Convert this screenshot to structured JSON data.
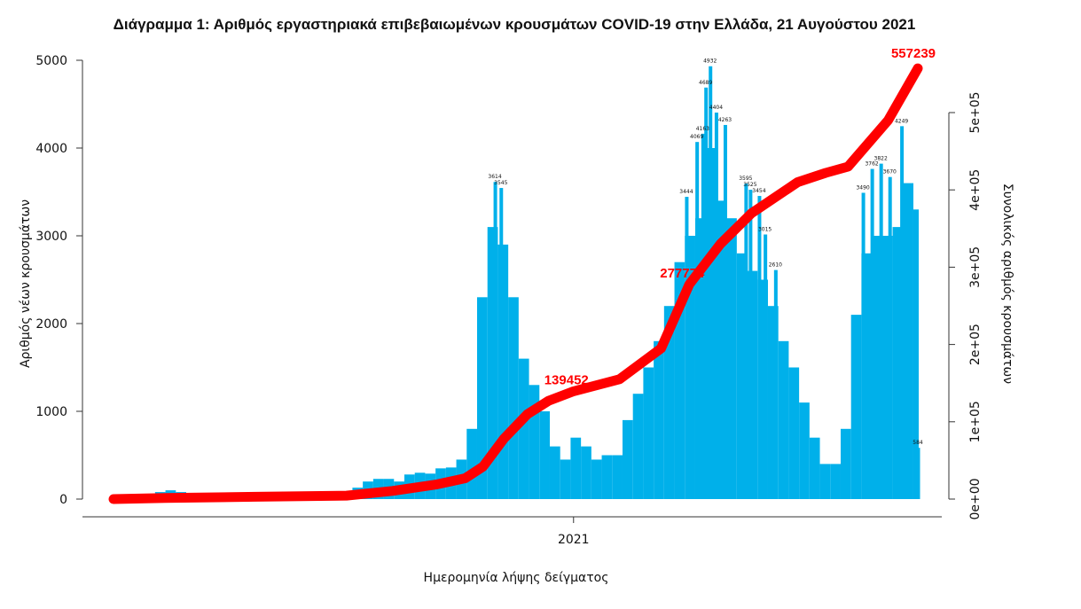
{
  "chart_data": {
    "type": "bar+line",
    "title": "Διάγραμμα 1: Αριθμός εργαστηριακά επιβεβαιωμένων κρουσμάτων COVID-19 στην Ελλάδα, 21 Αυγούστου 2021",
    "xlabel": "Ημερομηνία λήψης δείγματος",
    "ylabel_left": "Αριθμός νέων κρουσμάτων",
    "ylabel_right": "Συνολικός αριθμός κρουσμάτων",
    "x_tick_labels": [
      {
        "date": "2021-01-01",
        "label": "2021"
      }
    ],
    "left_ticks": [
      "0",
      "1000",
      "2000",
      "3000",
      "4000",
      "5000"
    ],
    "right_ticks": [
      "0e+00",
      "1e+05",
      "2e+05",
      "3e+05",
      "4e+05",
      "5e+05"
    ],
    "xlim": [
      "2020-02-26",
      "2021-08-21"
    ],
    "ylim_left": [
      0,
      5000
    ],
    "ylim_right": [
      0,
      500000
    ],
    "grid": false,
    "colors": {
      "bars": "#00b0ea",
      "cumulative": "#ff0000"
    },
    "daily_series": {
      "name": "",
      "x": [
        "2020-02-26",
        "2020-03-04",
        "2020-03-11",
        "2020-03-18",
        "2020-03-25",
        "2020-04-01",
        "2020-04-08",
        "2020-04-15",
        "2020-04-22",
        "2020-04-29",
        "2020-05-06",
        "2020-05-13",
        "2020-05-20",
        "2020-05-27",
        "2020-06-03",
        "2020-06-10",
        "2020-06-17",
        "2020-06-24",
        "2020-07-01",
        "2020-07-08",
        "2020-07-15",
        "2020-07-22",
        "2020-07-29",
        "2020-08-05",
        "2020-08-12",
        "2020-08-19",
        "2020-08-26",
        "2020-09-02",
        "2020-09-09",
        "2020-09-16",
        "2020-09-23",
        "2020-09-30",
        "2020-10-07",
        "2020-10-14",
        "2020-10-21",
        "2020-10-28",
        "2020-11-04",
        "2020-11-11",
        "2020-11-18",
        "2020-11-25",
        "2020-12-02",
        "2020-12-09",
        "2020-12-16",
        "2020-12-23",
        "2020-12-30",
        "2021-01-06",
        "2021-01-13",
        "2021-01-20",
        "2021-01-27",
        "2021-02-03",
        "2021-02-10",
        "2021-02-17",
        "2021-02-24",
        "2021-03-03",
        "2021-03-10",
        "2021-03-17",
        "2021-03-24",
        "2021-03-31",
        "2021-04-07",
        "2021-04-14",
        "2021-04-21",
        "2021-04-28",
        "2021-05-05",
        "2021-05-12",
        "2021-05-19",
        "2021-05-26",
        "2021-06-02",
        "2021-06-09",
        "2021-06-16",
        "2021-06-23",
        "2021-06-30",
        "2021-07-07",
        "2021-07-14",
        "2021-07-21",
        "2021-07-28",
        "2021-08-04",
        "2021-08-11",
        "2021-08-18"
      ],
      "values": [
        2,
        15,
        50,
        60,
        80,
        100,
        80,
        60,
        40,
        20,
        15,
        15,
        10,
        10,
        15,
        20,
        25,
        20,
        25,
        30,
        35,
        50,
        70,
        130,
        200,
        230,
        230,
        200,
        280,
        300,
        290,
        350,
        360,
        450,
        800,
        2300,
        3100,
        2900,
        2300,
        1600,
        1300,
        1000,
        600,
        450,
        700,
        600,
        450,
        500,
        500,
        900,
        1200,
        1500,
        1800,
        2200,
        2700,
        3000,
        3200,
        4000,
        3400,
        3200,
        2800,
        2600,
        2500,
        2200,
        1800,
        1500,
        1100,
        700,
        400,
        400,
        800,
        2100,
        2800,
        3000,
        3000,
        3100,
        3600,
        3300
      ]
    },
    "bar_labels": [
      {
        "date": "2020-11-09",
        "value": 3614
      },
      {
        "date": "2020-11-13",
        "value": 3545
      },
      {
        "date": "2021-03-18",
        "value": 3444
      },
      {
        "date": "2021-03-25",
        "value": 4069
      },
      {
        "date": "2021-03-29",
        "value": 4163
      },
      {
        "date": "2021-03-31",
        "value": 4689
      },
      {
        "date": "2021-04-03",
        "value": 4932
      },
      {
        "date": "2021-04-07",
        "value": 4404
      },
      {
        "date": "2021-04-13",
        "value": 4263
      },
      {
        "date": "2021-04-27",
        "value": 3595
      },
      {
        "date": "2021-04-30",
        "value": 3525
      },
      {
        "date": "2021-05-06",
        "value": 3454
      },
      {
        "date": "2021-05-10",
        "value": 3015
      },
      {
        "date": "2021-05-17",
        "value": 2610
      },
      {
        "date": "2021-07-15",
        "value": 3490
      },
      {
        "date": "2021-07-21",
        "value": 3762
      },
      {
        "date": "2021-07-27",
        "value": 3822
      },
      {
        "date": "2021-08-02",
        "value": 3670
      },
      {
        "date": "2021-08-10",
        "value": 4249
      },
      {
        "date": "2021-08-21",
        "value": 584
      }
    ],
    "cumulative_series": {
      "name": "",
      "x": [
        "2020-02-26",
        "2020-04-01",
        "2020-06-01",
        "2020-08-01",
        "2020-09-01",
        "2020-10-01",
        "2020-10-20",
        "2020-11-01",
        "2020-11-15",
        "2020-12-01",
        "2020-12-15",
        "2021-01-01",
        "2021-02-01",
        "2021-03-01",
        "2021-03-20",
        "2021-04-10",
        "2021-05-01",
        "2021-06-01",
        "2021-06-20",
        "2021-07-05",
        "2021-08-01",
        "2021-08-21"
      ],
      "values": [
        0,
        1500,
        3000,
        4500,
        10500,
        19000,
        27000,
        42000,
        78000,
        110000,
        127000,
        139452,
        155000,
        195000,
        277774,
        330000,
        370000,
        410000,
        422000,
        430000,
        490000,
        557239
      ]
    },
    "cumulative_labels": [
      {
        "date": "2021-01-01",
        "value": "139452"
      },
      {
        "date": "2021-03-20",
        "value": "277774"
      },
      {
        "date": "2021-08-21",
        "value": "557239"
      }
    ]
  }
}
